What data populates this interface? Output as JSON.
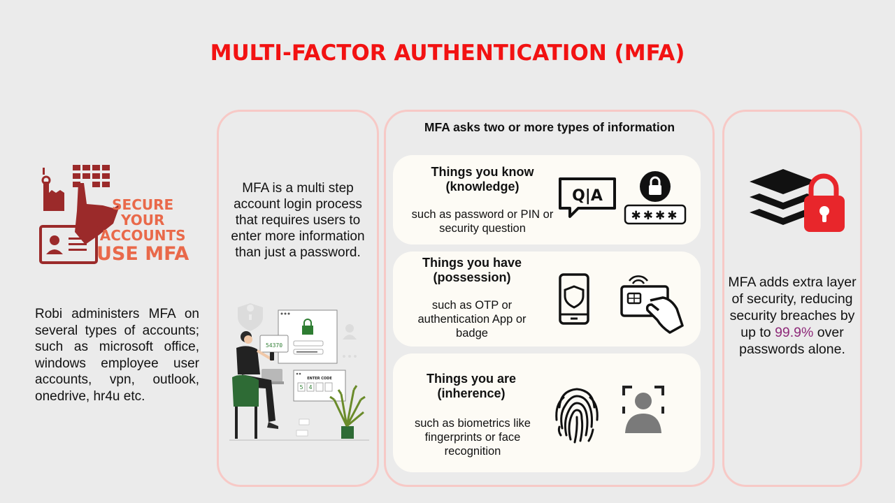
{
  "title": "MULTI-FACTOR AUTHENTICATION (MFA)",
  "logo": {
    "line1": "SECURE",
    "line2": "YOUR",
    "line3": "ACCOUNTS",
    "line4": "USE MFA"
  },
  "left_text": "Robi administers MFA on several types of accounts; such as microsoft office, windows employee user accounts, vpn, outlook, onedrive, hr4u etc.",
  "panel1": {
    "text": "MFA is a multi step account login process that requires users to enter more information than just a password.",
    "illustration": {
      "code": "54370",
      "form_label": "ENTER CODE",
      "code_boxes": [
        "5",
        "4",
        "",
        ""
      ]
    }
  },
  "panel2": {
    "heading": "MFA asks two or more types of information",
    "cards": [
      {
        "title": "Things you know (knowledge)",
        "desc": "such as password or PIN or security question",
        "icons": [
          "qa-icon",
          "lock-icon",
          "password-stars-icon"
        ]
      },
      {
        "title": "Things you have (possession)",
        "desc": "such as OTP or authentication App or badge",
        "icons": [
          "phone-shield-icon",
          "badge-card-icon"
        ]
      },
      {
        "title": "Things you are (inherence)",
        "desc": "such as biometrics like fingerprints or face recognition",
        "icons": [
          "fingerprint-icon",
          "face-recognition-icon"
        ]
      }
    ],
    "qa_text": "Q|A",
    "stars_text": "✱✱✱✱"
  },
  "panel3": {
    "text_before": "MFA  adds extra layer of security, reducing security breaches by up to ",
    "highlight": "99.9%",
    "text_after": " over passwords alone.",
    "icon": "layers-lock-icon"
  },
  "colors": {
    "title": "#f21212",
    "logo_text": "#e9694a",
    "logo_icon": "#9b2a2a",
    "panel_border": "#f7c9c6",
    "card_bg": "#fdfbf5",
    "highlight": "#8e2a79",
    "lock_red": "#e8262b"
  }
}
